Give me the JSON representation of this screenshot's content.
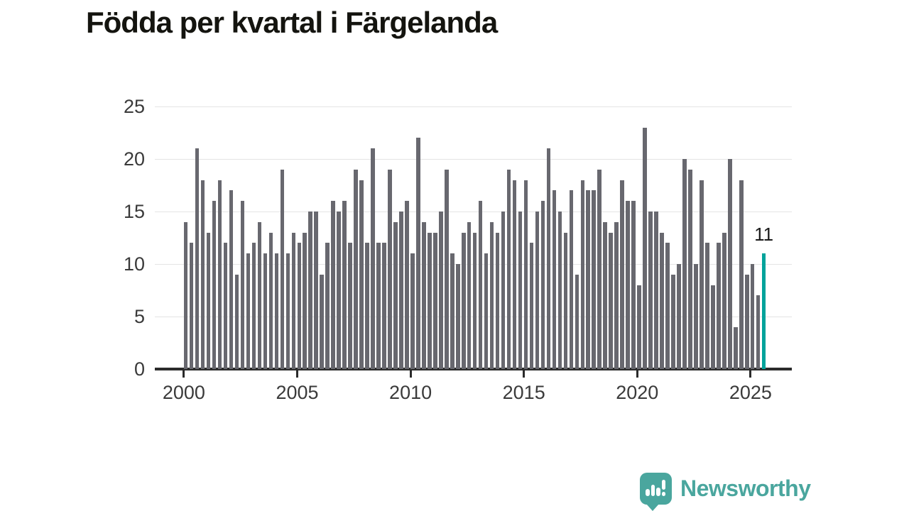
{
  "title": "Födda per kvartal i Färgelanda",
  "annotation": {
    "label": "11"
  },
  "branding": {
    "name": "Newsworthy",
    "icon": "newsworthy-chart-bubble-icon"
  },
  "colors": {
    "bar": "#68686f",
    "highlight": "#00a39b",
    "axis": "#2b2b2b",
    "grid": "#e4e4e4",
    "tick_label": "#3a3a3a",
    "logo": "#4aa69e",
    "background": "#ffffff"
  },
  "chart_data": {
    "type": "bar",
    "title": "Födda per kvartal i Färgelanda",
    "xlabel": "",
    "ylabel": "",
    "ylim": [
      0,
      25
    ],
    "y_ticks": [
      0,
      5,
      10,
      15,
      20,
      25
    ],
    "x_tick_labels": [
      "2000",
      "2005",
      "2010",
      "2015",
      "2020",
      "2025"
    ],
    "grid": true,
    "legend": false,
    "period_start": "2000-Q1",
    "period_end": "2025-Q3",
    "quarters_per_year": 4,
    "values": [
      14,
      12,
      21,
      18,
      13,
      16,
      18,
      12,
      17,
      9,
      16,
      11,
      12,
      14,
      11,
      13,
      11,
      19,
      11,
      13,
      12,
      13,
      15,
      15,
      9,
      12,
      16,
      15,
      16,
      12,
      19,
      18,
      12,
      21,
      12,
      12,
      19,
      14,
      15,
      16,
      11,
      22,
      14,
      13,
      13,
      15,
      19,
      11,
      10,
      13,
      14,
      13,
      16,
      11,
      14,
      13,
      15,
      19,
      18,
      15,
      18,
      12,
      15,
      16,
      21,
      17,
      15,
      13,
      17,
      9,
      18,
      17,
      17,
      19,
      14,
      13,
      14,
      18,
      16,
      16,
      8,
      23,
      15,
      15,
      13,
      12,
      9,
      10,
      20,
      19,
      10,
      18,
      12,
      8,
      12,
      13,
      20,
      4,
      18,
      9,
      10,
      7,
      11
    ],
    "highlight_index": 102,
    "highlight_value": 11
  }
}
